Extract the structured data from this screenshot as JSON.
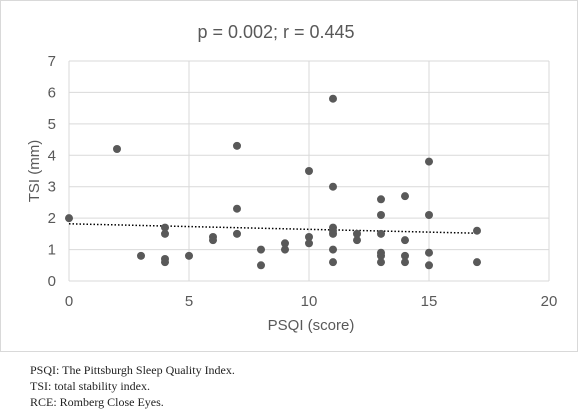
{
  "chart_data": {
    "type": "scatter",
    "title": "p = 0.002; r = 0.445",
    "xlabel": "PSQI (score)",
    "ylabel": "TSI (mm)",
    "xlim": [
      0,
      20
    ],
    "ylim": [
      0,
      7
    ],
    "x_ticks": [
      "0",
      "5",
      "10",
      "15",
      "20"
    ],
    "y_ticks": [
      "0",
      "1",
      "2",
      "3",
      "4",
      "5",
      "6",
      "7"
    ],
    "grid": "horizontal",
    "trendline": {
      "style": "dotted",
      "x": [
        0,
        17
      ],
      "y": [
        1.82,
        1.52
      ]
    },
    "points": [
      [
        0,
        2.0
      ],
      [
        2,
        4.2
      ],
      [
        3,
        0.8
      ],
      [
        4,
        1.7
      ],
      [
        4,
        1.5
      ],
      [
        4,
        0.7
      ],
      [
        4,
        0.6
      ],
      [
        5,
        0.8
      ],
      [
        6,
        1.4
      ],
      [
        6,
        1.3
      ],
      [
        7,
        4.3
      ],
      [
        7,
        2.3
      ],
      [
        7,
        1.5
      ],
      [
        8,
        1.0
      ],
      [
        8,
        0.5
      ],
      [
        9,
        1.2
      ],
      [
        9,
        1.0
      ],
      [
        10,
        3.5
      ],
      [
        10,
        1.4
      ],
      [
        10,
        1.2
      ],
      [
        11,
        5.8
      ],
      [
        11,
        3.0
      ],
      [
        11,
        1.7
      ],
      [
        11,
        1.6
      ],
      [
        11,
        1.5
      ],
      [
        11,
        1.0
      ],
      [
        11,
        0.6
      ],
      [
        12,
        1.5
      ],
      [
        12,
        1.3
      ],
      [
        13,
        2.6
      ],
      [
        13,
        2.1
      ],
      [
        13,
        1.5
      ],
      [
        13,
        0.9
      ],
      [
        13,
        0.8
      ],
      [
        13,
        0.6
      ],
      [
        14,
        2.7
      ],
      [
        14,
        1.3
      ],
      [
        14,
        0.8
      ],
      [
        14,
        0.6
      ],
      [
        15,
        3.8
      ],
      [
        15,
        2.1
      ],
      [
        15,
        0.9
      ],
      [
        15,
        0.5
      ],
      [
        17,
        1.6
      ],
      [
        17,
        0.6
      ]
    ],
    "colors": {
      "marker": "#595959",
      "grid": "#d9d9d9",
      "axis_text": "#595959",
      "trend": "#000000"
    }
  },
  "notes": [
    "PSQI: The Pittsburgh Sleep Quality Index.",
    "TSI: total stability index.",
    "RCE: Romberg Close Eyes."
  ]
}
